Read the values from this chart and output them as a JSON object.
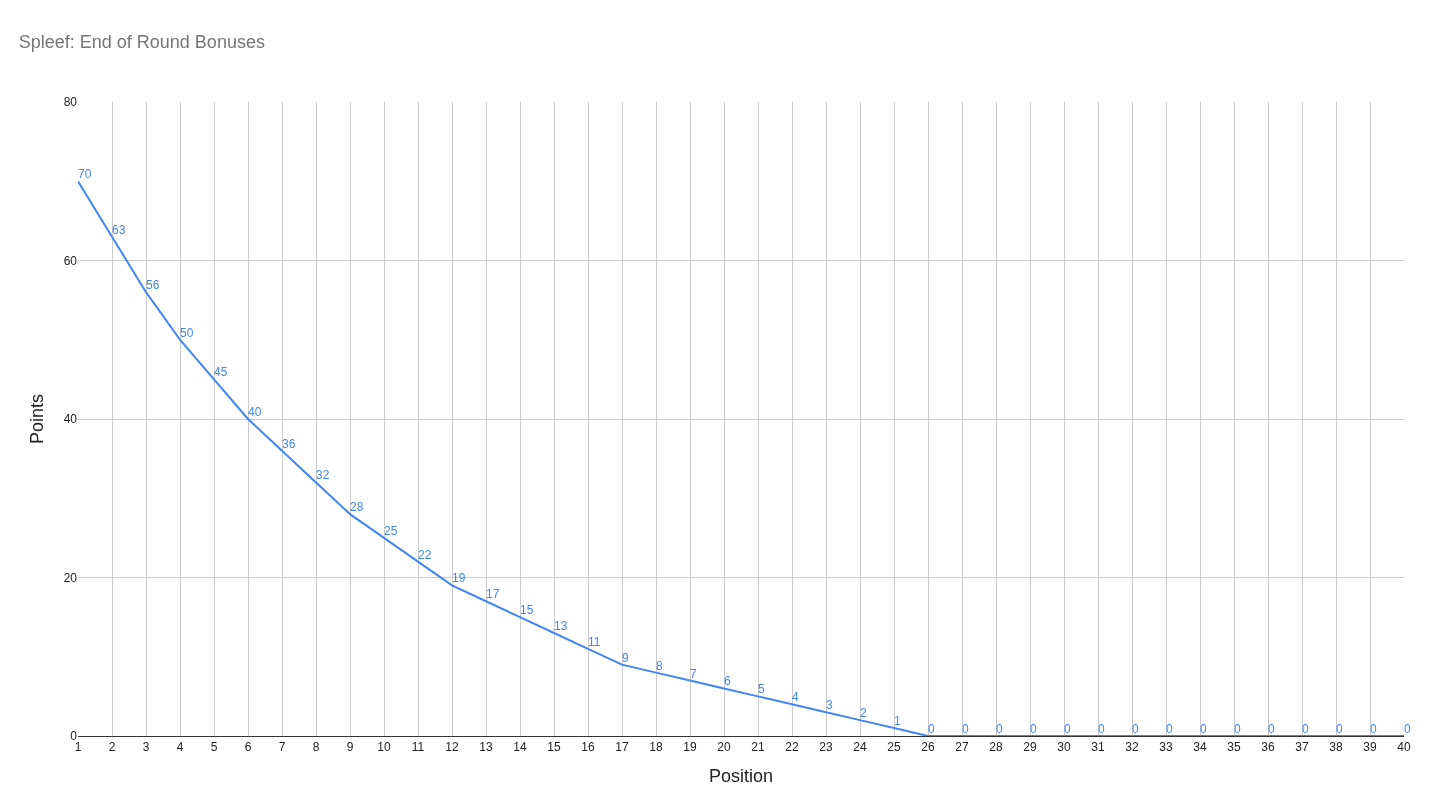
{
  "chart_data": {
    "type": "line",
    "title": "Spleef: End of Round Bonuses",
    "xlabel": "Position",
    "ylabel": "Points",
    "x": [
      1,
      2,
      3,
      4,
      5,
      6,
      7,
      8,
      9,
      10,
      11,
      12,
      13,
      14,
      15,
      16,
      17,
      18,
      19,
      20,
      21,
      22,
      23,
      24,
      25,
      26,
      27,
      28,
      29,
      30,
      31,
      32,
      33,
      34,
      35,
      36,
      37,
      38,
      39,
      40
    ],
    "series": [
      {
        "color": "#4285f4",
        "values": [
          70,
          63,
          56,
          50,
          45,
          40,
          36,
          32,
          28,
          25,
          22,
          19,
          17,
          15,
          13,
          11,
          9,
          8,
          7,
          6,
          5,
          4,
          3,
          2,
          1,
          0,
          0,
          0,
          0,
          0,
          0,
          0,
          0,
          0,
          0,
          0,
          0,
          0,
          0,
          0
        ]
      }
    ],
    "xlim": [
      1,
      40
    ],
    "xticks": [
      1,
      2,
      3,
      4,
      5,
      6,
      7,
      8,
      9,
      10,
      11,
      12,
      13,
      14,
      15,
      16,
      17,
      18,
      19,
      20,
      21,
      22,
      23,
      24,
      25,
      26,
      27,
      28,
      29,
      30,
      31,
      32,
      33,
      34,
      35,
      36,
      37,
      38,
      39,
      40
    ],
    "ylim": [
      0,
      80
    ],
    "yticks": [
      0,
      20,
      40,
      60,
      80
    ],
    "grid": true,
    "data_labels": true,
    "marker": "none",
    "line_style": "solid"
  }
}
